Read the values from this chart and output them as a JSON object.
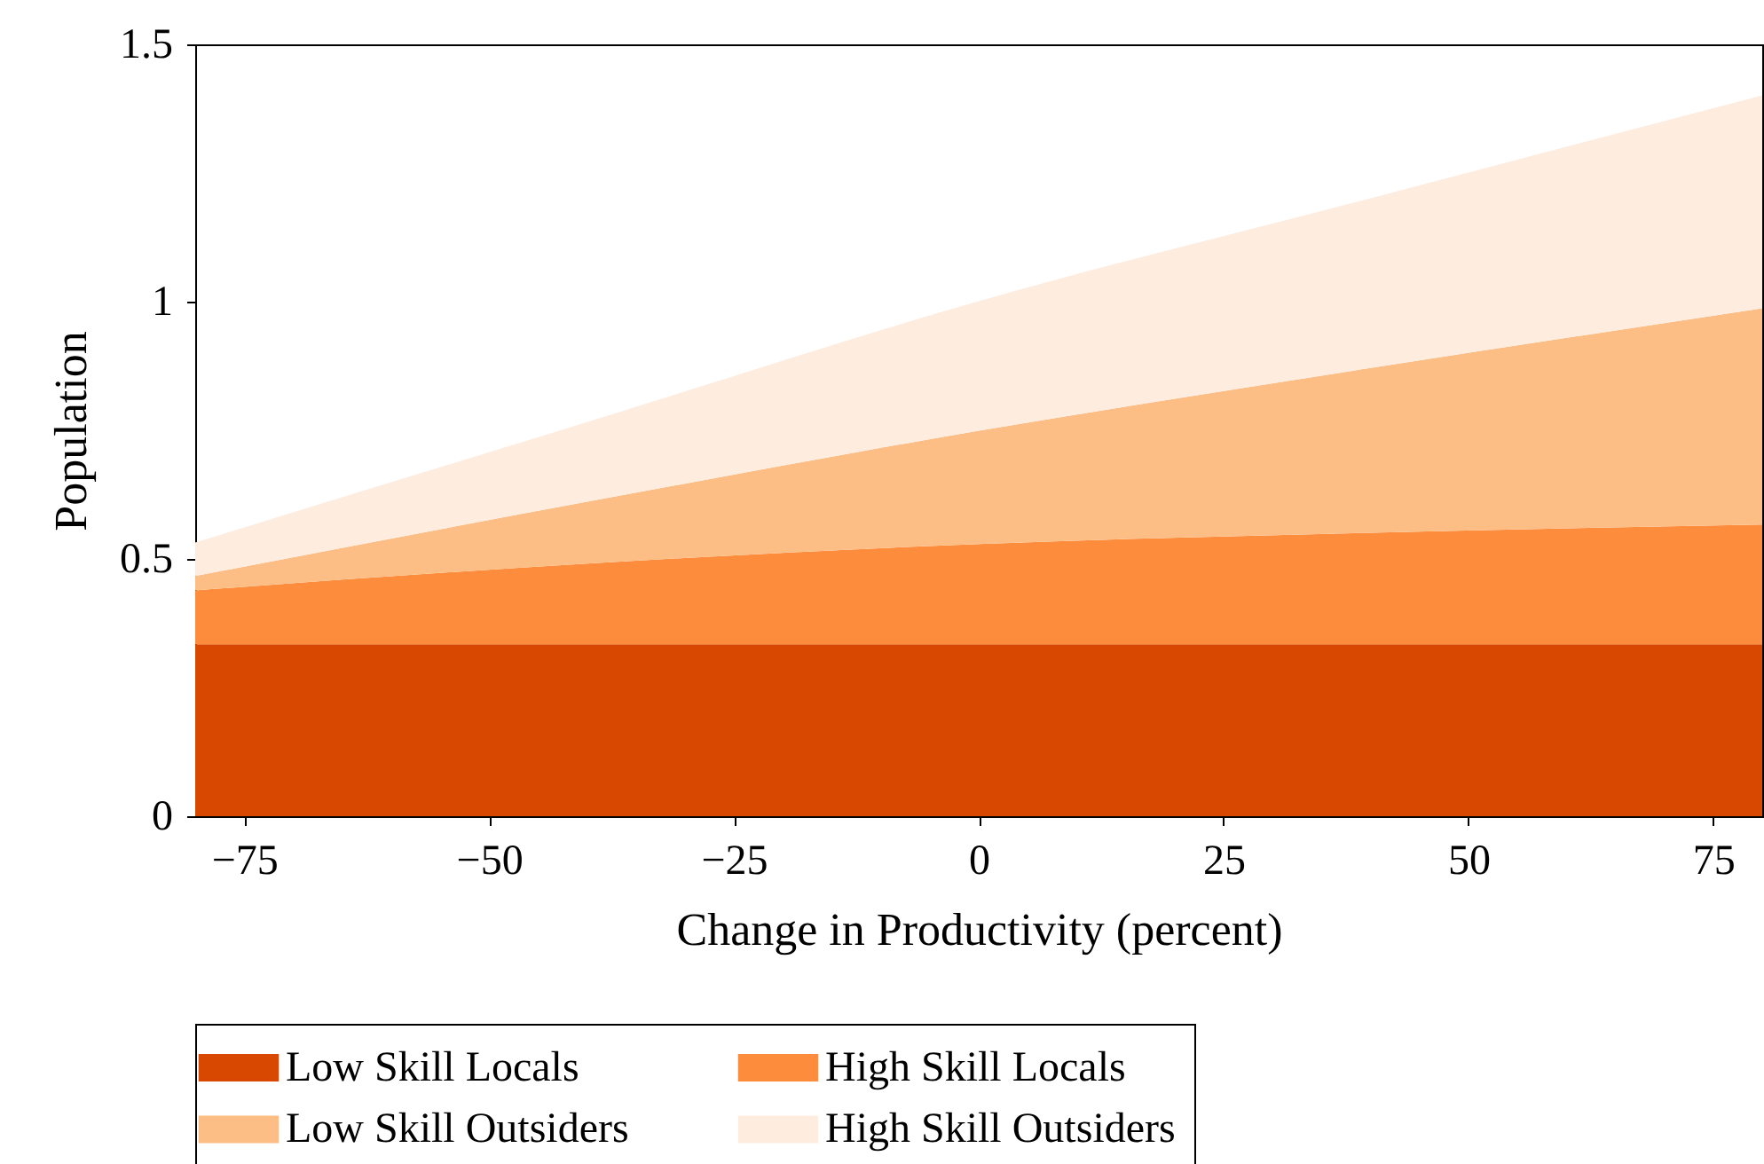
{
  "chart_data": {
    "type": "area",
    "stacked": true,
    "xlabel": "Change in Productivity (percent)",
    "ylabel": "Population",
    "x": [
      -80,
      -40,
      0,
      40,
      80
    ],
    "series": [
      {
        "name": "Low Skill Locals",
        "color": "#d94801",
        "values": [
          0.334,
          0.334,
          0.334,
          0.334,
          0.334
        ]
      },
      {
        "name": "High Skill Locals",
        "color": "#fd8d3c",
        "values": [
          0.105,
          0.157,
          0.195,
          0.217,
          0.233
        ]
      },
      {
        "name": "Low Skill Outsiders",
        "color": "#fdbe85",
        "values": [
          0.028,
          0.12,
          0.22,
          0.32,
          0.42
        ]
      },
      {
        "name": "High Skill Outsiders",
        "color": "#feeddf",
        "values": [
          0.065,
          0.155,
          0.252,
          0.33,
          0.414
        ]
      }
    ],
    "xlim": [
      -80,
      80
    ],
    "xticks": [
      -75,
      -50,
      -25,
      0,
      25,
      50,
      75
    ],
    "ylim": [
      0,
      1.5
    ],
    "yticks": [
      0,
      0.5,
      1,
      1.5
    ],
    "grid": false,
    "legend": "bottom"
  }
}
